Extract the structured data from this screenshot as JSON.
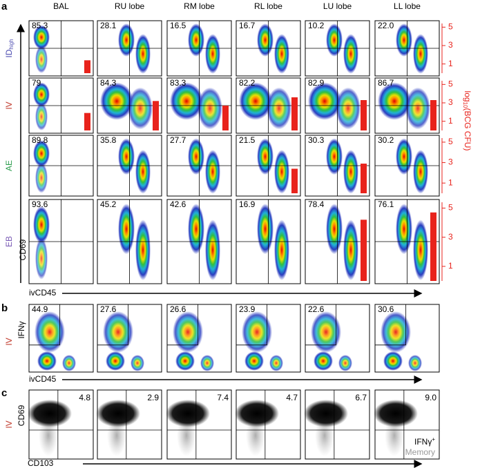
{
  "panel_a": {
    "letter": "a",
    "columns": [
      "BAL",
      "RU lobe",
      "RM lobe",
      "RL lobe",
      "LU lobe",
      "LL lobe"
    ],
    "rows": [
      {
        "label": "ID",
        "label_sub": "high",
        "color": "#4a4ab0",
        "percents": [
          "85.3",
          "28.1",
          "16.5",
          "16.7",
          "10.2",
          "22.0"
        ],
        "cfu": [
          1.4,
          null,
          null,
          null,
          null,
          null
        ]
      },
      {
        "label": "IV",
        "color": "#c0392b",
        "percents": [
          "79",
          "84.3",
          "83.3",
          "82.2",
          "82.9",
          "86.7"
        ],
        "cfu": [
          1.9,
          3.2,
          2.7,
          3.6,
          3.3,
          3.3
        ]
      },
      {
        "label": "AE",
        "color": "#2e9e4f",
        "percents": [
          "89.8",
          "35.8",
          "27.7",
          "21.5",
          "30.3",
          "30.2"
        ],
        "cfu": [
          null,
          null,
          null,
          2.4,
          2.9,
          null
        ]
      },
      {
        "label": "EB",
        "color": "#7a5bb5",
        "percents": [
          "93.6",
          "45.2",
          "42.6",
          "16.9",
          "78.4",
          "76.1"
        ],
        "cfu": [
          null,
          null,
          null,
          null,
          4.2,
          4.7
        ]
      }
    ],
    "y_axis": "CD69",
    "x_axis": "ivCD45",
    "cfu_label": [
      "log",
      "10",
      "(BCG CFU)"
    ],
    "cfu_ylim": [
      0,
      5.4
    ],
    "cfu_ticks": [
      1,
      3,
      5
    ],
    "cfu_color": "#e8231c"
  },
  "panel_b": {
    "letter": "b",
    "row_label": "IV",
    "y_axis": "IFNγ",
    "x_axis": "ivCD45",
    "percents": [
      "44.9",
      "27.6",
      "26.6",
      "23.9",
      "22.6",
      "30.6"
    ]
  },
  "panel_c": {
    "letter": "c",
    "row_label": "IV",
    "y_axis": "CD69",
    "x_axis": "CD103",
    "percents": [
      "4.8",
      "2.9",
      "7.4",
      "4.7",
      "6.7",
      "9.0"
    ],
    "legend": [
      "IFNγ",
      "+",
      "Memory"
    ]
  }
}
